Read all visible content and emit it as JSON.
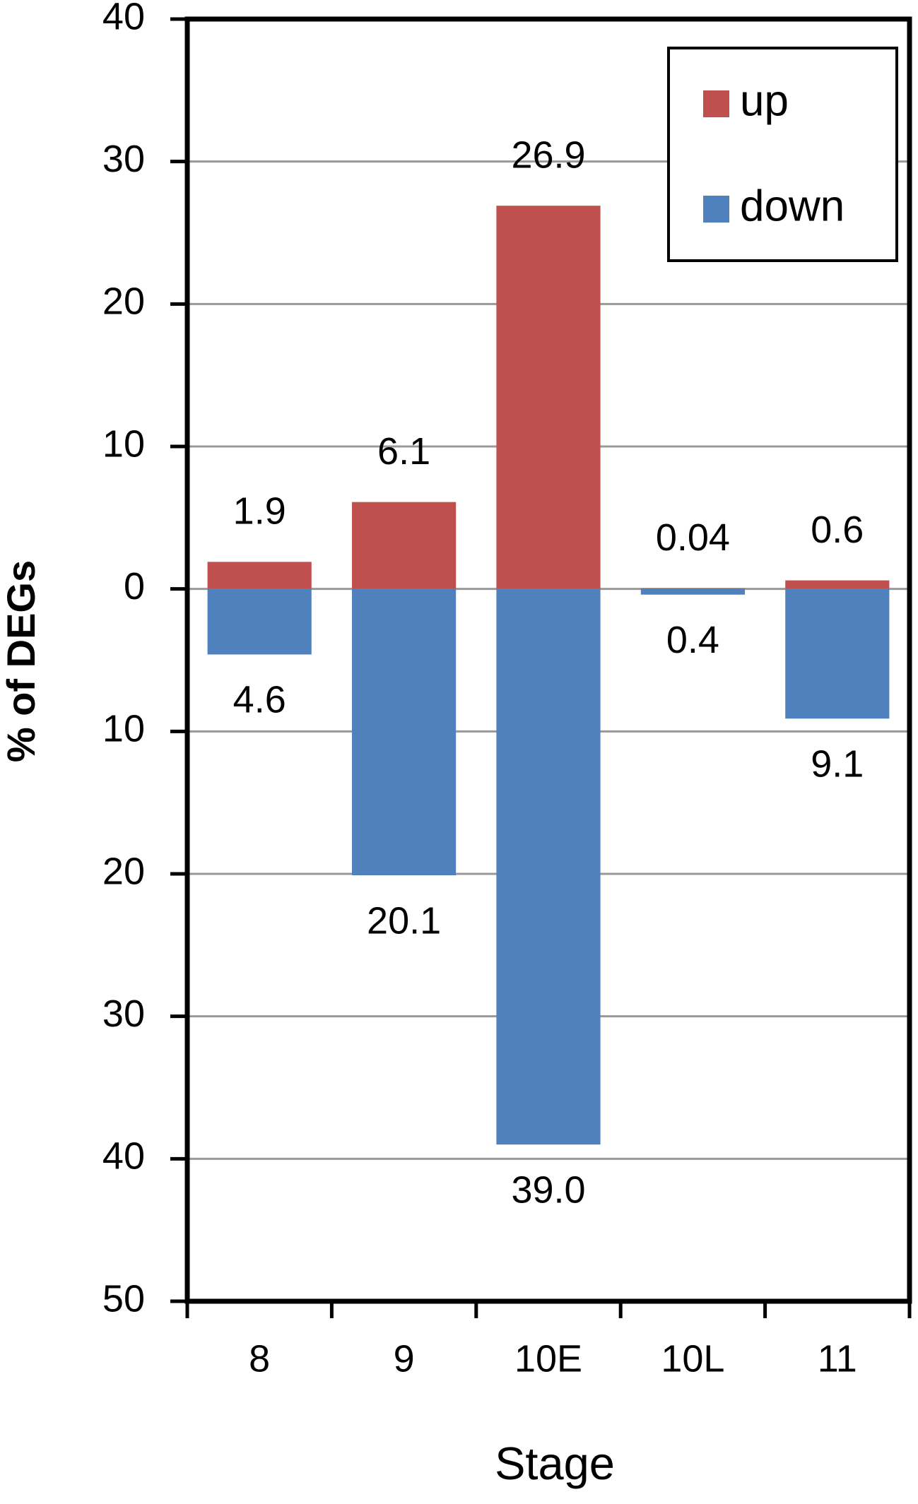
{
  "chart_data": {
    "type": "bar",
    "stacked": true,
    "x_label": "Stage",
    "y_label": "% of DEGs",
    "categories": [
      "8",
      "9",
      "10E",
      "10L",
      "11"
    ],
    "series": [
      {
        "name": "up",
        "color": "#c0504d",
        "values": [
          1.9,
          6.1,
          26.9,
          0.04,
          0.6
        ]
      },
      {
        "name": "down",
        "color": "#4f81bd",
        "values": [
          -4.6,
          -20.1,
          -39.0,
          -0.4,
          -9.1
        ],
        "value_labels": [
          "4.6",
          "20.1",
          "39.0",
          "0.4",
          "9.1"
        ]
      }
    ],
    "ylim": [
      -50,
      40
    ],
    "yticks": [
      {
        "value": -50,
        "label": "50"
      },
      {
        "value": -40,
        "label": "40"
      },
      {
        "value": -30,
        "label": "30"
      },
      {
        "value": -20,
        "label": "20"
      },
      {
        "value": -10,
        "label": "10"
      },
      0,
      10,
      20,
      30,
      40
    ],
    "grid": true,
    "legend": "upper right"
  }
}
